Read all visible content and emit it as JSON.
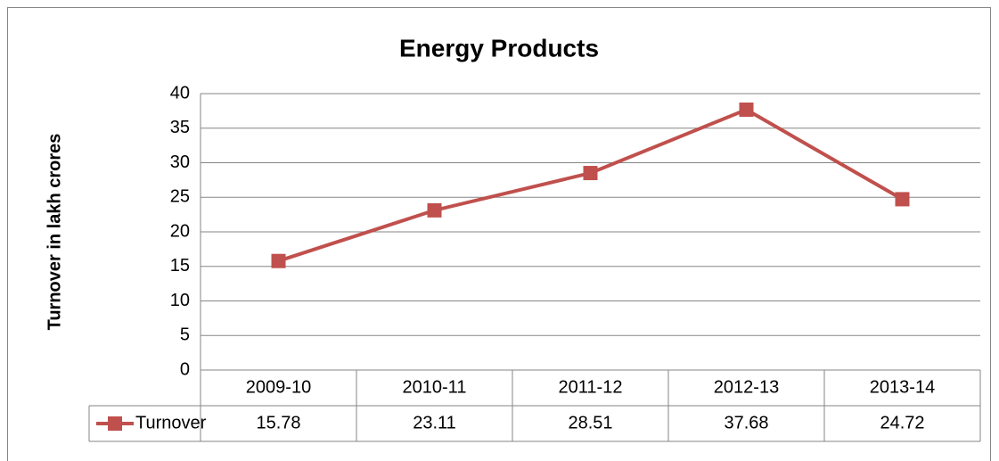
{
  "chart_data": {
    "type": "line",
    "title": "Energy Products",
    "y_label": "Turnover in lakh crores",
    "categories": [
      "2009-10",
      "2010-11",
      "2011-12",
      "2012-13",
      "2013-14"
    ],
    "series": [
      {
        "name": "Turnover",
        "color": "#c0504d",
        "values": [
          15.78,
          23.11,
          28.51,
          37.68,
          24.72
        ]
      }
    ],
    "ylim": [
      0,
      40
    ],
    "yticks": [
      0,
      5,
      10,
      15,
      20,
      25,
      30,
      35,
      40
    ],
    "grid": true
  }
}
